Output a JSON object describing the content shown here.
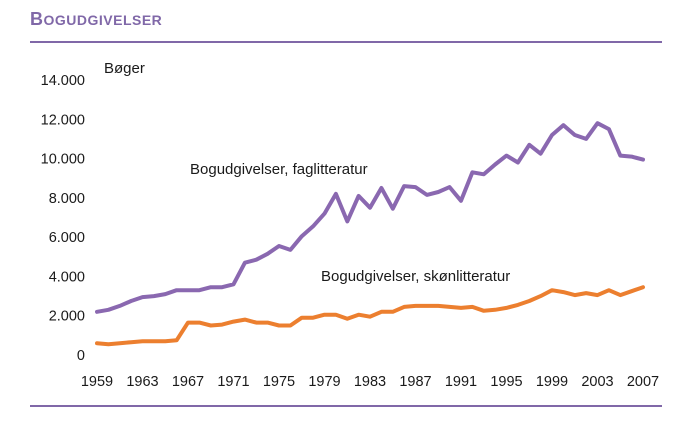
{
  "header": {
    "title": "Bogudgivelser"
  },
  "colors": {
    "accent": "#8068a8",
    "fag": "#8a68b0",
    "skon": "#ec7f2f",
    "text": "#1a1a1a"
  },
  "chart_data": {
    "type": "line",
    "title": "Bogudgivelser",
    "ylabel": "Bøger",
    "ylim": [
      0,
      14000
    ],
    "yticks": [
      0,
      2000,
      4000,
      6000,
      8000,
      10000,
      12000,
      14000
    ],
    "ytick_labels": [
      "0",
      "2.000",
      "4.000",
      "6.000",
      "8.000",
      "10.000",
      "12.000",
      "14.000"
    ],
    "xlim": [
      1959,
      2007
    ],
    "xticks": [
      1959,
      1963,
      1967,
      1971,
      1975,
      1979,
      1983,
      1987,
      1991,
      1995,
      1999,
      2003,
      2007
    ],
    "xtick_labels": [
      "1959",
      "1963",
      "1967",
      "1971",
      "1975",
      "1979",
      "1983",
      "1987",
      "1991",
      "1995",
      "1999",
      "2003",
      "2007"
    ],
    "grid": false,
    "series": [
      {
        "name": "Bogudgivelser, faglitteratur",
        "x": [
          1959,
          1960,
          1961,
          1962,
          1963,
          1964,
          1965,
          1966,
          1967,
          1968,
          1969,
          1970,
          1971,
          1972,
          1973,
          1974,
          1975,
          1976,
          1977,
          1978,
          1979,
          1980,
          1981,
          1982,
          1983,
          1984,
          1985,
          1986,
          1987,
          1988,
          1989,
          1990,
          1991,
          1992,
          1993,
          1994,
          1995,
          1996,
          1997,
          1998,
          1999,
          2000,
          2001,
          2002,
          2003,
          2004,
          2005,
          2006,
          2007
        ],
        "values": [
          2200,
          2300,
          2500,
          2750,
          2950,
          3000,
          3100,
          3300,
          3300,
          3300,
          3450,
          3450,
          3600,
          4700,
          4850,
          5150,
          5550,
          5350,
          6050,
          6550,
          7200,
          8200,
          6800,
          8100,
          7500,
          8500,
          7450,
          8600,
          8550,
          8150,
          8300,
          8550,
          7850,
          9300,
          9200,
          9700,
          10150,
          9800,
          10700,
          10250,
          11200,
          11700,
          11200,
          11000,
          11800,
          11500,
          10150,
          10100,
          9950
        ]
      },
      {
        "name": "Bogudgivelser, skønlitteratur",
        "x": [
          1959,
          1960,
          1961,
          1962,
          1963,
          1964,
          1965,
          1966,
          1967,
          1968,
          1969,
          1970,
          1971,
          1972,
          1973,
          1974,
          1975,
          1976,
          1977,
          1978,
          1979,
          1980,
          1981,
          1982,
          1983,
          1984,
          1985,
          1986,
          1987,
          1988,
          1989,
          1990,
          1991,
          1992,
          1993,
          1994,
          1995,
          1996,
          1997,
          1998,
          1999,
          2000,
          2001,
          2002,
          2003,
          2004,
          2005,
          2006,
          2007
        ],
        "values": [
          600,
          550,
          600,
          650,
          700,
          700,
          700,
          750,
          1650,
          1650,
          1500,
          1550,
          1700,
          1800,
          1650,
          1650,
          1500,
          1500,
          1900,
          1900,
          2050,
          2050,
          1850,
          2050,
          1950,
          2200,
          2200,
          2450,
          2500,
          2500,
          2500,
          2450,
          2400,
          2450,
          2250,
          2300,
          2400,
          2550,
          2750,
          3000,
          3300,
          3200,
          3050,
          3150,
          3050,
          3300,
          3050,
          3250,
          3450
        ]
      }
    ],
    "annotations": [
      {
        "text": "Bogudgivelser, faglitteratur",
        "series": 0
      },
      {
        "text": "Bogudgivelser, skønlitteratur",
        "series": 1
      }
    ]
  }
}
